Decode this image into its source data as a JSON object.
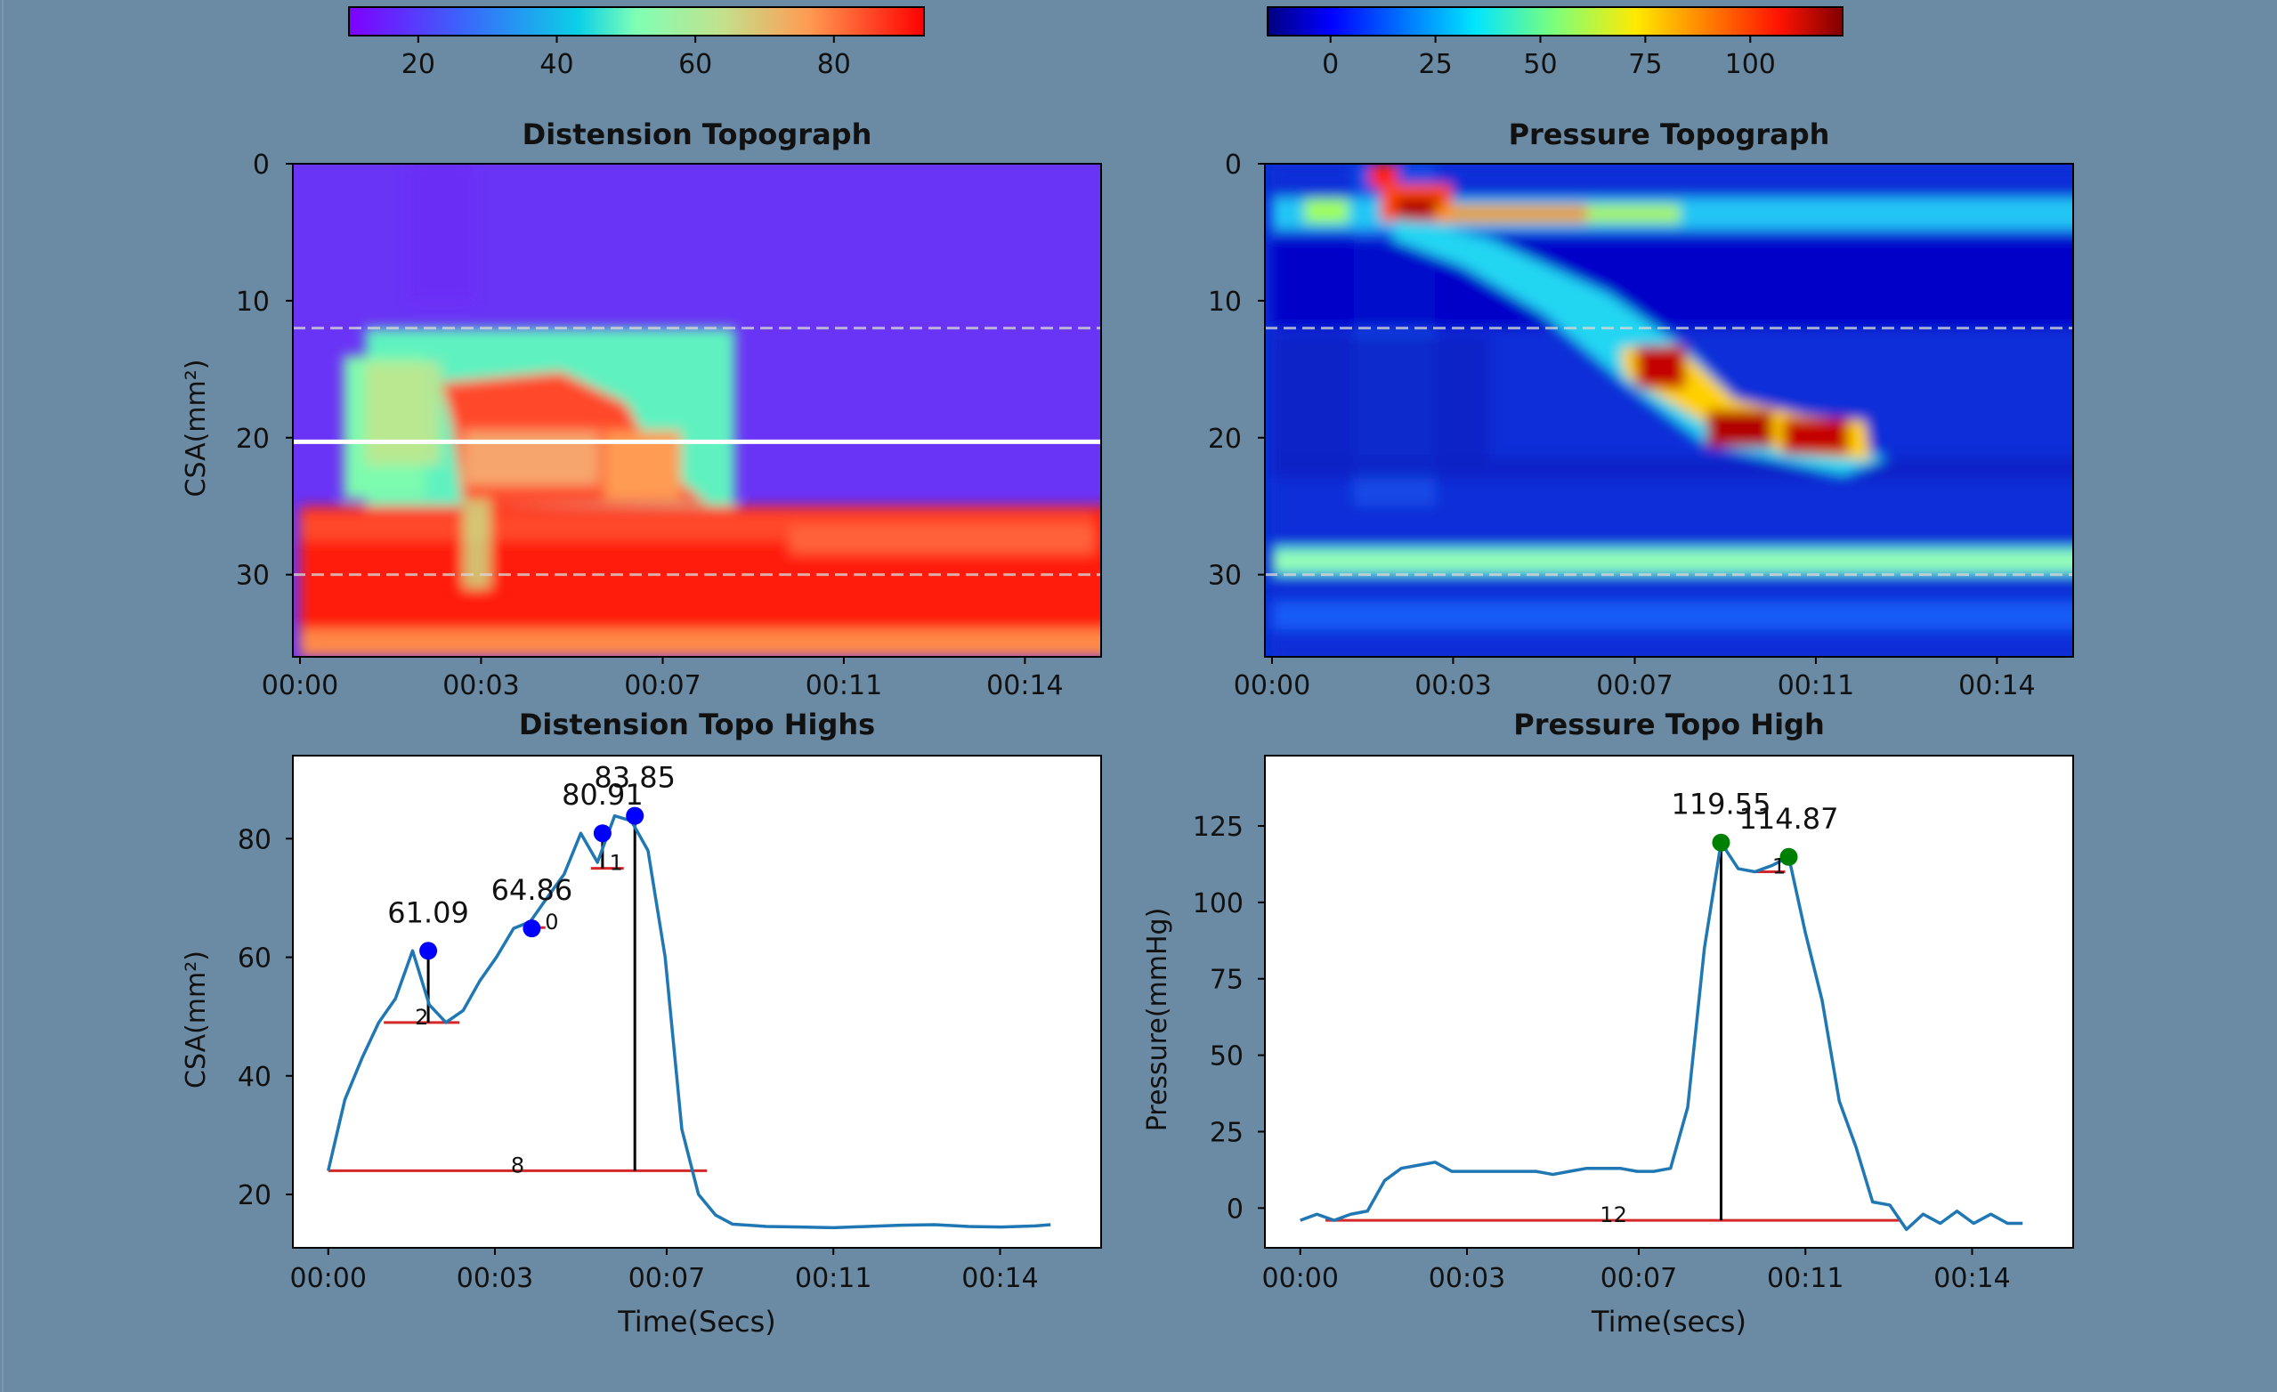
{
  "colors": {
    "background": "#6b8aa3",
    "line": "#1f77b4",
    "base_line": "#d62728",
    "peak_marker_distension": "#0000ff",
    "peak_marker_pressure": "#008000",
    "prominence_line": "#000000"
  },
  "chart_data": [
    {
      "type": "heatmap",
      "id": "distension_topo",
      "title": "Distension Topograph",
      "xlabel": "",
      "ylabel": "CSA(mm²)",
      "colormap": "rainbow",
      "x_range_s": [
        0,
        14.6
      ],
      "x_ticks": [
        "00:00",
        "00:03",
        "00:07",
        "00:11",
        "00:14"
      ],
      "y_range": [
        0,
        36
      ],
      "y_ticks": [
        "0",
        "10",
        "20",
        "30"
      ],
      "reference_lines": [
        {
          "y": 12,
          "style": "dashed"
        },
        {
          "y": 20.3,
          "style": "solid-white"
        },
        {
          "y": 30,
          "style": "dashed"
        }
      ],
      "colorbar": {
        "range": [
          10,
          93
        ],
        "ticks": [
          "20",
          "40",
          "60",
          "80"
        ]
      }
    },
    {
      "type": "heatmap",
      "id": "pressure_topo",
      "title": "Pressure Topograph",
      "xlabel": "",
      "ylabel": "",
      "colormap": "jet",
      "x_range_s": [
        0,
        14.6
      ],
      "x_ticks": [
        "00:00",
        "00:03",
        "00:07",
        "00:11",
        "00:14"
      ],
      "y_range": [
        0,
        36
      ],
      "y_ticks": [
        "0",
        "10",
        "20",
        "30"
      ],
      "reference_lines": [
        {
          "y": 12,
          "style": "dashed"
        },
        {
          "y": 30,
          "style": "dashed"
        }
      ],
      "colorbar": {
        "range": [
          -15,
          122
        ],
        "ticks": [
          "0",
          "25",
          "50",
          "75",
          "100"
        ]
      }
    },
    {
      "type": "line",
      "id": "distension_highs",
      "title": "Distension Topo Highs",
      "xlabel": "Time(Secs)",
      "ylabel": "CSA(mm²)",
      "xlim": [
        -0.7,
        15.3
      ],
      "ylim": [
        11,
        94
      ],
      "x_ticks": [
        {
          "v": 0,
          "label": "00:00"
        },
        {
          "v": 3.3,
          "label": "00:03"
        },
        {
          "v": 6.7,
          "label": "00:07"
        },
        {
          "v": 10,
          "label": "00:11"
        },
        {
          "v": 13.3,
          "label": "00:14"
        }
      ],
      "y_ticks": [
        20,
        40,
        60,
        80
      ],
      "x": [
        0,
        0.33,
        0.67,
        1.0,
        1.33,
        1.67,
        2.0,
        2.33,
        2.67,
        3.0,
        3.33,
        3.67,
        4.0,
        4.33,
        4.67,
        5.0,
        5.33,
        5.67,
        6.0,
        6.33,
        6.67,
        7.0,
        7.33,
        7.67,
        8.0,
        8.67,
        9.33,
        10.0,
        10.67,
        11.33,
        12.0,
        12.67,
        13.33,
        14.0,
        14.3
      ],
      "y": [
        24,
        36,
        43,
        49,
        53,
        61.09,
        52,
        49,
        51,
        56,
        60,
        64.86,
        66,
        70,
        74,
        80.91,
        76,
        83.85,
        83,
        78,
        60,
        31,
        20,
        16.5,
        15,
        14.6,
        14.5,
        14.4,
        14.6,
        14.8,
        14.9,
        14.6,
        14.5,
        14.7,
        14.9
      ],
      "peaks": [
        {
          "x": 1.98,
          "y": 61.09,
          "label": "61.09"
        },
        {
          "x": 4.03,
          "y": 64.86,
          "label": "64.86"
        },
        {
          "x": 5.43,
          "y": 80.91,
          "label": "80.91"
        },
        {
          "x": 6.07,
          "y": 83.85,
          "label": "83.85"
        }
      ],
      "prominence_lines": [
        {
          "x": 1.98,
          "y0": 49,
          "y1": 61.09
        },
        {
          "x": 5.43,
          "y0": 75,
          "y1": 80.91
        },
        {
          "x": 6.07,
          "y0": 24,
          "y1": 83.85
        }
      ],
      "base_lines": [
        {
          "x0": 1.1,
          "x1": 2.6,
          "y": 49,
          "label": "2"
        },
        {
          "x0": 4.2,
          "x1": 4.3,
          "y": 65,
          "label": "0"
        },
        {
          "x0": 5.2,
          "x1": 5.85,
          "y": 75,
          "label": "1"
        },
        {
          "x0": 0,
          "x1": 7.5,
          "y": 24,
          "label": "8"
        }
      ]
    },
    {
      "type": "line",
      "id": "pressure_high",
      "title": "Pressure Topo High",
      "xlabel": "Time(secs)",
      "ylabel": "Pressure(mmHg)",
      "xlim": [
        -0.7,
        15.3
      ],
      "ylim": [
        -13,
        148
      ],
      "x_ticks": [
        {
          "v": 0,
          "label": "00:00"
        },
        {
          "v": 3.3,
          "label": "00:03"
        },
        {
          "v": 6.7,
          "label": "00:07"
        },
        {
          "v": 10,
          "label": "00:11"
        },
        {
          "v": 13.3,
          "label": "00:14"
        }
      ],
      "y_ticks": [
        0,
        25,
        50,
        75,
        100,
        125
      ],
      "x": [
        0,
        0.33,
        0.67,
        1.0,
        1.33,
        1.67,
        2.0,
        2.33,
        2.67,
        3.0,
        3.33,
        3.67,
        4.0,
        4.33,
        4.67,
        5.0,
        5.33,
        5.67,
        6.0,
        6.33,
        6.67,
        7.0,
        7.33,
        7.67,
        8.0,
        8.33,
        8.67,
        9.0,
        9.33,
        9.67,
        10.0,
        10.33,
        10.67,
        11.0,
        11.33,
        11.67,
        12.0,
        12.33,
        12.67,
        13.0,
        13.33,
        13.67,
        14.0,
        14.3
      ],
      "y": [
        -4,
        -2,
        -4,
        -2,
        -1,
        9,
        13,
        14,
        15,
        12,
        12,
        12,
        12,
        12,
        12,
        11,
        12,
        13,
        13,
        13,
        12,
        12,
        13,
        33,
        85,
        119.55,
        111,
        110,
        112,
        114.87,
        90,
        68,
        35,
        20,
        2,
        1,
        -7,
        -2,
        -5,
        -1,
        -5,
        -2,
        -5,
        -5
      ],
      "peaks": [
        {
          "x": 8.33,
          "y": 119.55,
          "label": "119.55"
        },
        {
          "x": 9.67,
          "y": 114.87,
          "label": "114.87"
        }
      ],
      "prominence_lines": [
        {
          "x": 8.33,
          "y0": -4,
          "y1": 119.55
        }
      ],
      "base_lines": [
        {
          "x0": 9.0,
          "x1": 9.6,
          "y": 110,
          "label": "1"
        },
        {
          "x0": 0.5,
          "x1": 11.9,
          "y": -4,
          "label": "12"
        }
      ]
    }
  ]
}
